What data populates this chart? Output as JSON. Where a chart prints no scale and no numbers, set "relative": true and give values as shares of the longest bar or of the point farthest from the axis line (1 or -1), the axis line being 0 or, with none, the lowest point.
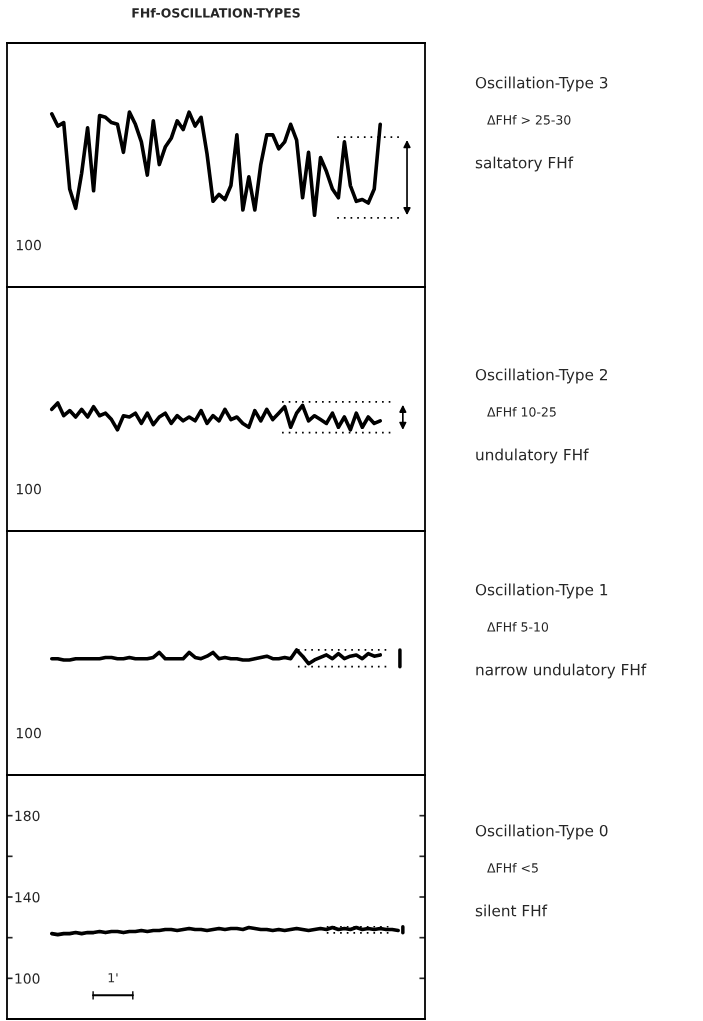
{
  "chart_data": [
    {
      "type": "line",
      "title": "FHf-OSCILLATION-TYPES",
      "relative": true,
      "categories": [
        null,
        null,
        null,
        null,
        null,
        null,
        null,
        null,
        null,
        null,
        null,
        null,
        null,
        null,
        null,
        null,
        null,
        null,
        null,
        null,
        null,
        null,
        null,
        null,
        null,
        null,
        null,
        null,
        null,
        null,
        null,
        null,
        null,
        null,
        null,
        null,
        null,
        null,
        null,
        null,
        null,
        null,
        null,
        null,
        null,
        null,
        null,
        null,
        null,
        null,
        null,
        null,
        null,
        null,
        null,
        null,
        null,
        null,
        null,
        null,
        null,
        null,
        null,
        null,
        null,
        null,
        null,
        null,
        null,
        null
      ],
      "values": [
        null,
        null,
        null,
        null,
        null,
        null,
        null,
        0.99,
        0.92,
        0.94,
        0.56,
        0.45,
        0.65,
        0.91,
        0.55,
        0.98,
        0.97,
        0.94,
        0.93,
        0.77,
        1,
        0.93,
        0.83,
        0.64,
        0.95,
        0.7,
        0.8,
        0.85,
        0.95,
        0.9,
        1,
        0.92,
        0.97,
        0.76,
        0.49,
        0.53,
        0.5,
        0.58,
        0.87,
        0.44,
        0.63,
        0.44,
        0.7,
        0.87,
        0.87,
        0.79,
        0.83,
        0.93,
        0.84,
        0.51,
        0.77,
        0.41,
        0.74,
        0.66,
        0.56,
        0.51,
        0.83,
        0.58,
        0.49,
        0.5,
        0.48,
        0.56,
        0.93,
        null,
        null,
        null,
        null,
        null,
        null,
        null
      ],
      "color": "#000000",
      "tick_labels": false,
      "grid": false,
      "annotations": [
        "Oscillation-Type 3",
        "ΔFHf > 25-30",
        "saltatory FHf",
        "100"
      ]
    },
    {
      "type": "line",
      "relative": true,
      "categories": [
        null,
        null,
        null,
        null,
        null,
        null,
        null,
        null,
        null,
        null,
        null,
        null,
        null,
        null,
        null,
        null,
        null,
        null,
        null,
        null,
        null,
        null,
        null,
        null,
        null,
        null,
        null,
        null,
        null,
        null,
        null,
        null,
        null,
        null,
        null,
        null,
        null,
        null,
        null,
        null,
        null,
        null,
        null,
        null,
        null,
        null,
        null,
        null,
        null,
        null,
        null,
        null,
        null,
        null,
        null,
        null,
        null,
        null,
        null,
        null,
        null,
        null,
        null,
        null,
        null,
        null,
        null,
        null,
        null,
        null
      ],
      "values": [
        null,
        null,
        null,
        null,
        null,
        null,
        null,
        0.95,
        1,
        0.9,
        0.94,
        0.89,
        0.95,
        0.89,
        0.97,
        0.9,
        0.92,
        0.87,
        0.79,
        0.9,
        0.89,
        0.92,
        0.84,
        0.92,
        0.83,
        0.89,
        0.92,
        0.84,
        0.9,
        0.86,
        0.89,
        0.86,
        0.94,
        0.84,
        0.9,
        0.86,
        0.95,
        0.87,
        0.89,
        0.84,
        0.81,
        0.94,
        0.86,
        0.95,
        0.87,
        0.92,
        0.97,
        0.81,
        0.92,
        0.98,
        0.86,
        0.9,
        0.87,
        0.84,
        0.92,
        0.81,
        0.89,
        0.79,
        0.92,
        0.81,
        0.89,
        0.84,
        0.86,
        null,
        null,
        null,
        null,
        null,
        null,
        null
      ],
      "color": "#000000",
      "tick_labels": false,
      "grid": false,
      "annotations": [
        "Oscillation-Type 2",
        "ΔFHf 10-25",
        "undulatory FHf",
        "100"
      ]
    },
    {
      "type": "line",
      "relative": true,
      "categories": [
        null,
        null,
        null,
        null,
        null,
        null,
        null,
        null,
        null,
        null,
        null,
        null,
        null,
        null,
        null,
        null,
        null,
        null,
        null,
        null,
        null,
        null,
        null,
        null,
        null,
        null,
        null,
        null,
        null,
        null,
        null,
        null,
        null,
        null,
        null,
        null,
        null,
        null,
        null,
        null,
        null,
        null,
        null,
        null,
        null,
        null,
        null,
        null,
        null,
        null,
        null,
        null,
        null,
        null,
        null,
        null,
        null,
        null,
        null,
        null,
        null,
        null,
        null,
        null,
        null,
        null,
        null,
        null,
        null,
        null
      ],
      "values": [
        null,
        null,
        null,
        null,
        null,
        null,
        null,
        0.93,
        0.93,
        0.92,
        0.92,
        0.93,
        0.93,
        0.93,
        0.93,
        0.93,
        0.94,
        0.94,
        0.93,
        0.93,
        0.94,
        0.93,
        0.93,
        0.93,
        0.94,
        0.98,
        0.93,
        0.93,
        0.93,
        0.93,
        0.98,
        0.94,
        0.93,
        0.95,
        0.98,
        0.93,
        0.94,
        0.93,
        0.93,
        0.92,
        0.92,
        0.93,
        0.94,
        0.95,
        0.93,
        0.93,
        0.94,
        0.93,
        1,
        0.95,
        0.89,
        0.92,
        0.94,
        0.96,
        0.93,
        0.97,
        0.93,
        0.95,
        0.96,
        0.93,
        0.97,
        0.95,
        0.96,
        null,
        null,
        null,
        null,
        null,
        null,
        null
      ],
      "color": "#000000",
      "tick_labels": false,
      "grid": false,
      "annotations": [
        "Oscillation-Type 1",
        "ΔFHf 5-10",
        "narrow undulatory FHf",
        "100"
      ]
    },
    {
      "type": "line",
      "categories": [
        null,
        null,
        null,
        null,
        null,
        null,
        null,
        null,
        null,
        null,
        null,
        null,
        null,
        null,
        null,
        null,
        null,
        null,
        null,
        null,
        null,
        null,
        null,
        null,
        null,
        null,
        null,
        null,
        null,
        null,
        null,
        null,
        null,
        null,
        null,
        null,
        null,
        null,
        null,
        null,
        null,
        null,
        null,
        null,
        null,
        null,
        null,
        null,
        null,
        null,
        null,
        null,
        null,
        null,
        null,
        null,
        null,
        null,
        null,
        null,
        null,
        null,
        null,
        null,
        null,
        null,
        null,
        null,
        null,
        null
      ],
      "values": [
        null,
        null,
        null,
        null,
        null,
        null,
        null,
        122,
        121.5,
        122,
        122,
        122.5,
        122,
        122.5,
        122.5,
        123,
        122.5,
        123,
        123,
        122.5,
        123,
        123,
        123.5,
        123,
        123.5,
        123.5,
        124,
        124,
        123.5,
        124,
        124.5,
        124,
        124,
        123.5,
        124,
        124.5,
        124,
        124.5,
        124.5,
        124,
        125,
        124.5,
        124,
        124,
        123.5,
        124,
        123.5,
        124,
        124.5,
        124,
        123.5,
        124,
        124.5,
        124,
        125,
        124,
        124.5,
        124,
        125,
        124,
        124.5,
        124,
        124.5,
        124,
        124,
        123.5,
        null,
        null,
        null,
        null
      ],
      "color": "#000000",
      "ylim": [
        80,
        200
      ],
      "yticks": [
        100,
        {
          "value": 120,
          "label": null
        },
        140,
        {
          "value": 160,
          "label": null
        },
        180
      ],
      "tick_labels": "y",
      "grid": false,
      "annotations": [
        "Oscillation-Type 0",
        "ΔFHf <5",
        "silent FHf",
        "1'"
      ]
    }
  ]
}
